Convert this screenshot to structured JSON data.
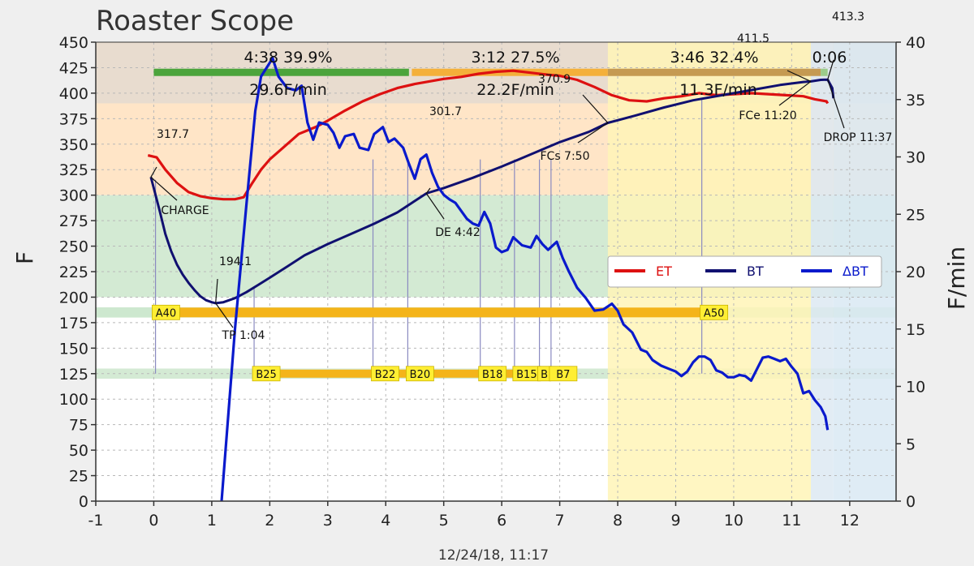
{
  "title": "Roaster Scope",
  "subtitle": "12/24/18, 11:17",
  "chart_data": {
    "type": "line",
    "xlim": [
      -1,
      12.8
    ],
    "ylim": [
      0,
      450
    ],
    "y2lim": [
      0,
      40
    ],
    "x_ticks": [
      -1,
      0,
      1,
      2,
      3,
      4,
      5,
      6,
      7,
      8,
      9,
      10,
      11,
      12
    ],
    "y_ticks": [
      0,
      25,
      50,
      75,
      100,
      125,
      150,
      175,
      200,
      225,
      250,
      275,
      300,
      325,
      350,
      375,
      400,
      425,
      450
    ],
    "y2_ticks": [
      0,
      5,
      10,
      15,
      20,
      25,
      30,
      35,
      40
    ],
    "xlabel": "",
    "ylabel": "F",
    "y2label": "F/min",
    "grid": true,
    "legend": "right, middle",
    "colors": {
      "ET": "#d11",
      "BT": "#101070",
      "dBT": "#0a1acc"
    },
    "series": [
      {
        "name": "ET",
        "axis": "left",
        "points": [
          [
            -0.1,
            339
          ],
          [
            0.05,
            337
          ],
          [
            0.2,
            325
          ],
          [
            0.4,
            312
          ],
          [
            0.6,
            303
          ],
          [
            0.8,
            299
          ],
          [
            1.0,
            297
          ],
          [
            1.2,
            296
          ],
          [
            1.4,
            296
          ],
          [
            1.55,
            298
          ],
          [
            1.7,
            312
          ],
          [
            1.85,
            325
          ],
          [
            2.0,
            335
          ],
          [
            2.2,
            345
          ],
          [
            2.5,
            360
          ],
          [
            2.8,
            367
          ],
          [
            3.0,
            373
          ],
          [
            3.3,
            383
          ],
          [
            3.6,
            392
          ],
          [
            3.9,
            399
          ],
          [
            4.2,
            405
          ],
          [
            4.5,
            409
          ],
          [
            4.8,
            412
          ],
          [
            5.0,
            414
          ],
          [
            5.3,
            416
          ],
          [
            5.6,
            419
          ],
          [
            5.9,
            421
          ],
          [
            6.2,
            422
          ],
          [
            6.5,
            420
          ],
          [
            6.8,
            418
          ],
          [
            7.0,
            417
          ],
          [
            7.3,
            413
          ],
          [
            7.6,
            406
          ],
          [
            7.9,
            398
          ],
          [
            8.2,
            393
          ],
          [
            8.5,
            392
          ],
          [
            8.8,
            395
          ],
          [
            9.1,
            397
          ],
          [
            9.4,
            400
          ],
          [
            9.7,
            398
          ],
          [
            10.0,
            399
          ],
          [
            10.3,
            400
          ],
          [
            10.6,
            399
          ],
          [
            10.9,
            398
          ],
          [
            11.2,
            397
          ],
          [
            11.4,
            394
          ],
          [
            11.6,
            392
          ],
          [
            11.62,
            390
          ]
        ]
      },
      {
        "name": "BT",
        "axis": "left",
        "points": [
          [
            -0.05,
            317.7
          ],
          [
            0.1,
            285
          ],
          [
            0.2,
            262
          ],
          [
            0.3,
            245
          ],
          [
            0.4,
            232
          ],
          [
            0.5,
            222
          ],
          [
            0.6,
            214
          ],
          [
            0.7,
            207
          ],
          [
            0.8,
            201
          ],
          [
            0.9,
            197
          ],
          [
            1.0,
            195
          ],
          [
            1.067,
            194.1
          ],
          [
            1.2,
            195
          ],
          [
            1.4,
            199
          ],
          [
            1.6,
            205
          ],
          [
            1.8,
            212
          ],
          [
            2.0,
            219
          ],
          [
            2.3,
            230
          ],
          [
            2.6,
            241
          ],
          [
            3.0,
            252
          ],
          [
            3.4,
            262
          ],
          [
            3.8,
            272
          ],
          [
            4.2,
            283
          ],
          [
            4.7,
            301.7
          ],
          [
            5.0,
            307
          ],
          [
            5.5,
            317
          ],
          [
            6.0,
            328
          ],
          [
            6.5,
            340
          ],
          [
            7.0,
            352
          ],
          [
            7.5,
            362
          ],
          [
            7.83,
            370.9
          ],
          [
            8.3,
            378
          ],
          [
            8.8,
            386
          ],
          [
            9.3,
            393
          ],
          [
            9.8,
            398
          ],
          [
            10.3,
            403
          ],
          [
            10.8,
            408
          ],
          [
            11.2,
            411
          ],
          [
            11.33,
            411.5
          ],
          [
            11.5,
            413
          ],
          [
            11.62,
            413.3
          ],
          [
            11.7,
            405
          ],
          [
            11.72,
            395
          ]
        ]
      },
      {
        "name": "ΔBT",
        "axis": "right",
        "points": [
          [
            1.17,
            0
          ],
          [
            1.4,
            15
          ],
          [
            1.6,
            26
          ],
          [
            1.75,
            34
          ],
          [
            1.85,
            37
          ],
          [
            2.05,
            38.6
          ],
          [
            2.15,
            37
          ],
          [
            2.3,
            36
          ],
          [
            2.45,
            35.8
          ],
          [
            2.55,
            36.2
          ],
          [
            2.65,
            33
          ],
          [
            2.75,
            31.5
          ],
          [
            2.85,
            33
          ],
          [
            3.0,
            32.8
          ],
          [
            3.1,
            32.1
          ],
          [
            3.2,
            30.8
          ],
          [
            3.3,
            31.8
          ],
          [
            3.45,
            32.0
          ],
          [
            3.55,
            30.8
          ],
          [
            3.7,
            30.6
          ],
          [
            3.8,
            32
          ],
          [
            3.95,
            32.6
          ],
          [
            4.05,
            31.3
          ],
          [
            4.15,
            31.6
          ],
          [
            4.3,
            30.8
          ],
          [
            4.4,
            29.4
          ],
          [
            4.5,
            28.1
          ],
          [
            4.6,
            29.8
          ],
          [
            4.7,
            30.2
          ],
          [
            4.8,
            28.6
          ],
          [
            4.9,
            27.4
          ],
          [
            5.0,
            26.7
          ],
          [
            5.1,
            26.3
          ],
          [
            5.2,
            26.0
          ],
          [
            5.4,
            24.6
          ],
          [
            5.5,
            24.2
          ],
          [
            5.6,
            24.0
          ],
          [
            5.7,
            25.2
          ],
          [
            5.8,
            24.2
          ],
          [
            5.9,
            22.1
          ],
          [
            6.0,
            21.7
          ],
          [
            6.1,
            21.9
          ],
          [
            6.2,
            23.0
          ],
          [
            6.35,
            22.3
          ],
          [
            6.5,
            22.1
          ],
          [
            6.6,
            23.1
          ],
          [
            6.7,
            22.4
          ],
          [
            6.8,
            21.9
          ],
          [
            6.95,
            22.6
          ],
          [
            7.05,
            21.2
          ],
          [
            7.15,
            20.1
          ],
          [
            7.3,
            18.6
          ],
          [
            7.45,
            17.7
          ],
          [
            7.6,
            16.6
          ],
          [
            7.75,
            16.7
          ],
          [
            7.9,
            17.2
          ],
          [
            8.0,
            16.6
          ],
          [
            8.1,
            15.4
          ],
          [
            8.25,
            14.7
          ],
          [
            8.4,
            13.2
          ],
          [
            8.5,
            13.0
          ],
          [
            8.6,
            12.3
          ],
          [
            8.75,
            11.8
          ],
          [
            8.9,
            11.5
          ],
          [
            9.0,
            11.3
          ],
          [
            9.1,
            10.9
          ],
          [
            9.2,
            11.3
          ],
          [
            9.3,
            12.1
          ],
          [
            9.4,
            12.6
          ],
          [
            9.5,
            12.6
          ],
          [
            9.6,
            12.3
          ],
          [
            9.7,
            11.4
          ],
          [
            9.8,
            11.2
          ],
          [
            9.9,
            10.8
          ],
          [
            10.0,
            10.8
          ],
          [
            10.1,
            11.0
          ],
          [
            10.2,
            10.9
          ],
          [
            10.3,
            10.5
          ],
          [
            10.4,
            11.5
          ],
          [
            10.5,
            12.5
          ],
          [
            10.6,
            12.6
          ],
          [
            10.7,
            12.4
          ],
          [
            10.8,
            12.2
          ],
          [
            10.9,
            12.4
          ],
          [
            11.0,
            11.7
          ],
          [
            11.1,
            11.1
          ],
          [
            11.2,
            9.4
          ],
          [
            11.3,
            9.6
          ],
          [
            11.4,
            8.8
          ],
          [
            11.5,
            8.2
          ],
          [
            11.58,
            7.4
          ],
          [
            11.62,
            6.2
          ]
        ]
      }
    ],
    "bands": [
      {
        "y": [
          300,
          450
        ],
        "color": "#ffe5c7"
      },
      {
        "y": [
          390,
          450
        ],
        "color": "#e8dccf"
      },
      {
        "y": [
          200,
          300
        ],
        "color": "#d3ead3"
      },
      {
        "y": [
          180,
          190
        ],
        "color": "#cde8cf"
      },
      {
        "y": [
          120,
          130
        ],
        "color": "#d4ead4"
      }
    ],
    "time_bands": [
      {
        "x": [
          7.83,
          11.33
        ],
        "color": "#fff5b7"
      },
      {
        "x": [
          11.33,
          11.72
        ],
        "color": "#dde9f2"
      },
      {
        "x": [
          11.72,
          12.8
        ],
        "color": "#d9e9f3"
      }
    ],
    "phases": [
      {
        "x": [
          0,
          4.4
        ],
        "color": "#4ca43c",
        "label": "4:38  39.9%",
        "ror": "29.6F/min"
      },
      {
        "x": [
          4.45,
          7.83
        ],
        "color": "#f4b03a",
        "label": "3:12  27.5%",
        "ror": "22.2F/min"
      },
      {
        "x": [
          7.83,
          11.5
        ],
        "color": "#c59a52",
        "label": "3:46  32.4%",
        "ror": "11.3F/min"
      },
      {
        "x": [
          11.5,
          11.62
        ],
        "color": "#9ccc8a",
        "label": "0:06",
        "ror": ""
      }
    ],
    "events": [
      {
        "x": -0.05,
        "y": 317.7,
        "value": "317.7",
        "label": "CHARGE"
      },
      {
        "x": 1.067,
        "y": 194.1,
        "value": "194.1",
        "label": "TP 1:04"
      },
      {
        "x": 4.7,
        "y": 301.7,
        "value": "301.7",
        "label": "DE 4:42"
      },
      {
        "x": 7.83,
        "y": 370.9,
        "value": "370.9",
        "label": "FCs 7:50"
      },
      {
        "x": 11.33,
        "y": 411.5,
        "value": "411.5",
        "label": "FCe 11:20"
      },
      {
        "x": 11.62,
        "y": 413.3,
        "value": "413.3",
        "label": "DROP 11:37"
      }
    ],
    "a_bar": {
      "y": 185,
      "x": [
        0,
        9.5
      ],
      "labels": [
        {
          "x": 0,
          "text": "A40"
        },
        {
          "x": 9.45,
          "text": "A50"
        }
      ]
    },
    "b_bar": {
      "y": 125,
      "x": [
        1.7,
        7.05
      ],
      "labels": [
        {
          "x": 1.73,
          "text": "B25"
        },
        {
          "x": 3.78,
          "text": "B22"
        },
        {
          "x": 4.38,
          "text": "B20"
        },
        {
          "x": 5.63,
          "text": "B18"
        },
        {
          "x": 6.22,
          "text": "B15"
        },
        {
          "x": 6.65,
          "text": "B"
        },
        {
          "x": 6.85,
          "text": "B7"
        }
      ]
    },
    "event_lines": [
      0.03,
      1.73,
      3.78,
      4.38,
      5.63,
      6.22,
      6.65,
      6.85,
      9.45
    ]
  }
}
